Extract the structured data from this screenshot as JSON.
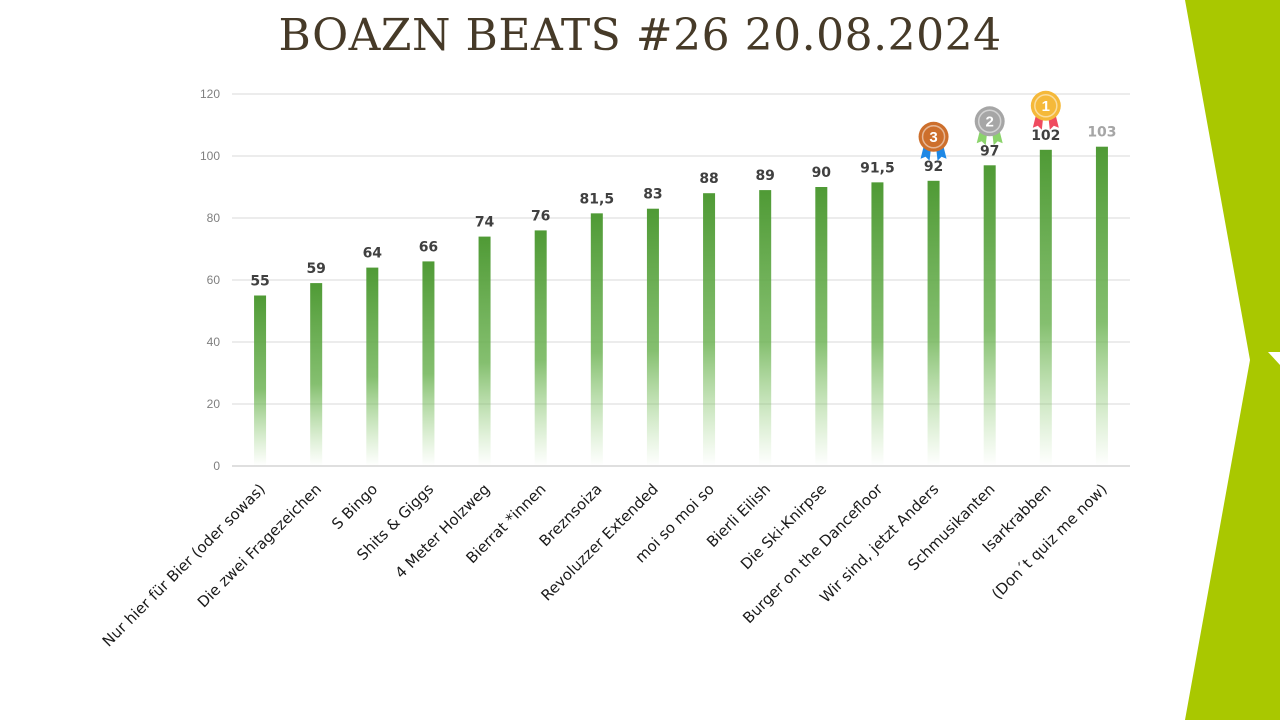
{
  "title": "BOAZN BEATS #26 20.08.2024",
  "colors": {
    "bar": "#5a9e3c",
    "accent": "#a9c800",
    "title": "#463a28",
    "grid": "#d9d9d9"
  },
  "chart_data": {
    "type": "bar",
    "title": "",
    "xlabel": "",
    "ylabel": "",
    "ylim": [
      0,
      120
    ],
    "yticks": [
      0,
      20,
      40,
      60,
      80,
      100,
      120
    ],
    "grid": true,
    "categories": [
      "Nur hier für Bier (oder sowas)",
      "Die zwei Fragezeichen",
      "S Bingo",
      "Shits & Giggs",
      "4 Meter Holzweg",
      "Bierrat *innen",
      "Breznsoiza",
      "Revoluzzer Extended",
      "moi so moi so",
      "Bierli Eilish",
      "Die Ski-Knirpse",
      "Burger on the Dancefloor",
      "Wir sind, jetzt Anders",
      "Schmusikanten",
      "Isarkrabben",
      "(Don´t quiz me now)"
    ],
    "values": [
      55,
      59,
      64,
      66,
      74,
      76,
      81.5,
      83,
      88,
      89,
      90,
      91.5,
      92,
      97,
      102,
      103
    ],
    "data_labels": [
      "55",
      "59",
      "64",
      "66",
      "74",
      "76",
      "81,5",
      "83",
      "88",
      "89",
      "90",
      "91,5",
      "92",
      "97",
      "102",
      "103"
    ],
    "faded_label_index": 15,
    "medals": [
      {
        "rank": "3",
        "category_index": 12,
        "icon": "bronze-medal-icon",
        "color": "#cd6f2c",
        "ribbon": "#1e88e5"
      },
      {
        "rank": "2",
        "category_index": 13,
        "icon": "silver-medal-icon",
        "color": "#a6a6a6",
        "ribbon": "#8bd36b"
      },
      {
        "rank": "1",
        "category_index": 14,
        "icon": "gold-medal-icon",
        "color": "#f5b93a",
        "ribbon": "#ef4b5f"
      }
    ]
  }
}
